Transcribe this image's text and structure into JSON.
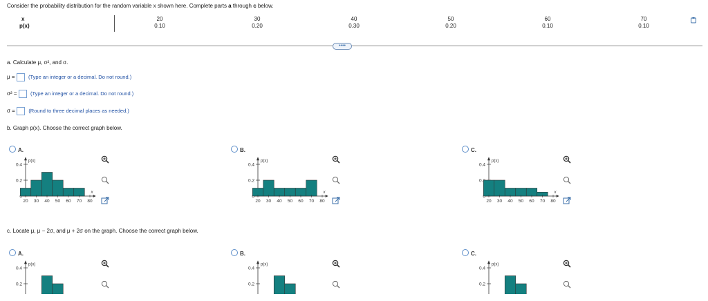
{
  "intro": {
    "text_prefix": "Consider the probability distribution for the random variable x shown here. Complete parts ",
    "a": "a",
    "through": " through ",
    "c": "c",
    "suffix": " below."
  },
  "table": {
    "x_label": "x",
    "p_label": "p(x)",
    "x_values": [
      "20",
      "30",
      "40",
      "50",
      "60",
      "70"
    ],
    "p_values": [
      "0.10",
      "0.20",
      "0.30",
      "0.20",
      "0.10",
      "0.10"
    ]
  },
  "more_button": "••••",
  "part_a": {
    "heading": "a. Calculate μ, σ², and σ.",
    "mu_label": "μ =",
    "mu_hint": "(Type an integer or a decimal. Do not round.)",
    "var_label": "σ² =",
    "var_hint": "(Type an integer or a decimal. Do not round.)",
    "sd_label": "σ =",
    "sd_hint": "(Round to three decimal places as needed.)"
  },
  "part_b": {
    "heading": "b. Graph p(x). Choose the correct graph below.",
    "options": [
      "A.",
      "B.",
      "C."
    ]
  },
  "part_c": {
    "heading": "c. Locate μ, μ − 2σ, and μ + 2σ on the graph. Choose the correct graph below.",
    "options": [
      "A.",
      "B.",
      "C."
    ]
  },
  "graph_text": {
    "ylabel": "p(x)",
    "xlabel": "x",
    "yticks": [
      "0.4",
      "0.2",
      "0"
    ],
    "xticks": [
      "20",
      "30",
      "40",
      "50",
      "60",
      "70",
      "80"
    ]
  },
  "chart_data": [
    {
      "type": "bar",
      "name": "b-A",
      "x": [
        20,
        30,
        40,
        50,
        60,
        70
      ],
      "values": [
        0.1,
        0.2,
        0.3,
        0.2,
        0.1,
        0.1
      ],
      "ylim": [
        0,
        0.45
      ]
    },
    {
      "type": "bar",
      "name": "b-B",
      "x": [
        20,
        30,
        40,
        50,
        60,
        70
      ],
      "values": [
        0.1,
        0.2,
        0.1,
        0.1,
        0.1,
        0.2
      ],
      "ylim": [
        0,
        0.45
      ]
    },
    {
      "type": "bar",
      "name": "b-C",
      "x": [
        20,
        30,
        40,
        50,
        60,
        70
      ],
      "values": [
        0.2,
        0.2,
        0.1,
        0.1,
        0.1,
        0.05
      ],
      "ylim": [
        0,
        0.45
      ]
    },
    {
      "type": "bar",
      "name": "c-A",
      "x": [
        40,
        50
      ],
      "values": [
        0.3,
        0.2
      ],
      "ylim": [
        0,
        0.45
      ]
    },
    {
      "type": "bar",
      "name": "c-B",
      "x": [
        40,
        50
      ],
      "values": [
        0.3,
        0.2
      ],
      "ylim": [
        0,
        0.45
      ]
    },
    {
      "type": "bar",
      "name": "c-C",
      "x": [
        40,
        50
      ],
      "values": [
        0.3,
        0.2
      ],
      "ylim": [
        0,
        0.45
      ]
    }
  ],
  "colors": {
    "bar_fill": "#148080",
    "bar_stroke": "#333333",
    "hint": "#1e4fa3",
    "radio": "#5d8ec9"
  },
  "icons": {
    "zoom_in": "zoom-in-icon",
    "zoom_out": "zoom-out-icon",
    "popout": "popout-icon"
  }
}
